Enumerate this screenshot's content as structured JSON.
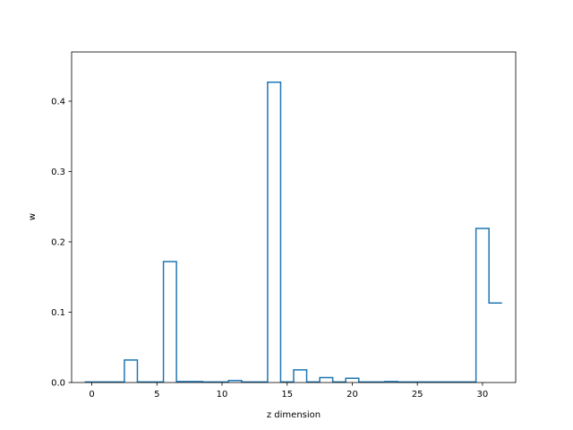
{
  "chart_data": {
    "type": "bar",
    "style": "step-outline",
    "title": "",
    "xlabel": "z dimension",
    "ylabel": "w",
    "xlim": [
      -1.55,
      32.55
    ],
    "ylim": [
      0,
      0.47
    ],
    "xticks": [
      0,
      5,
      10,
      15,
      20,
      25,
      30
    ],
    "yticks": [
      0.0,
      0.1,
      0.2,
      0.3,
      0.4
    ],
    "grid": false,
    "color": "#1f77b4",
    "x": [
      0,
      1,
      2,
      3,
      4,
      5,
      6,
      7,
      8,
      9,
      10,
      11,
      12,
      13,
      14,
      15,
      16,
      17,
      18,
      19,
      20,
      21,
      22,
      23,
      24,
      25,
      26,
      27,
      28,
      29,
      30,
      31
    ],
    "values": [
      0.0008,
      0.0008,
      0.0008,
      0.032,
      0.0008,
      0.0008,
      0.172,
      0.0015,
      0.0015,
      0.0008,
      0.0008,
      0.0028,
      0.0008,
      0.0008,
      0.427,
      0.0008,
      0.018,
      0.0008,
      0.007,
      0.0008,
      0.006,
      0.0008,
      0.0008,
      0.0015,
      0.0008,
      0.0008,
      0.0008,
      0.0008,
      0.0008,
      0.0008,
      0.219,
      0.113
    ]
  }
}
